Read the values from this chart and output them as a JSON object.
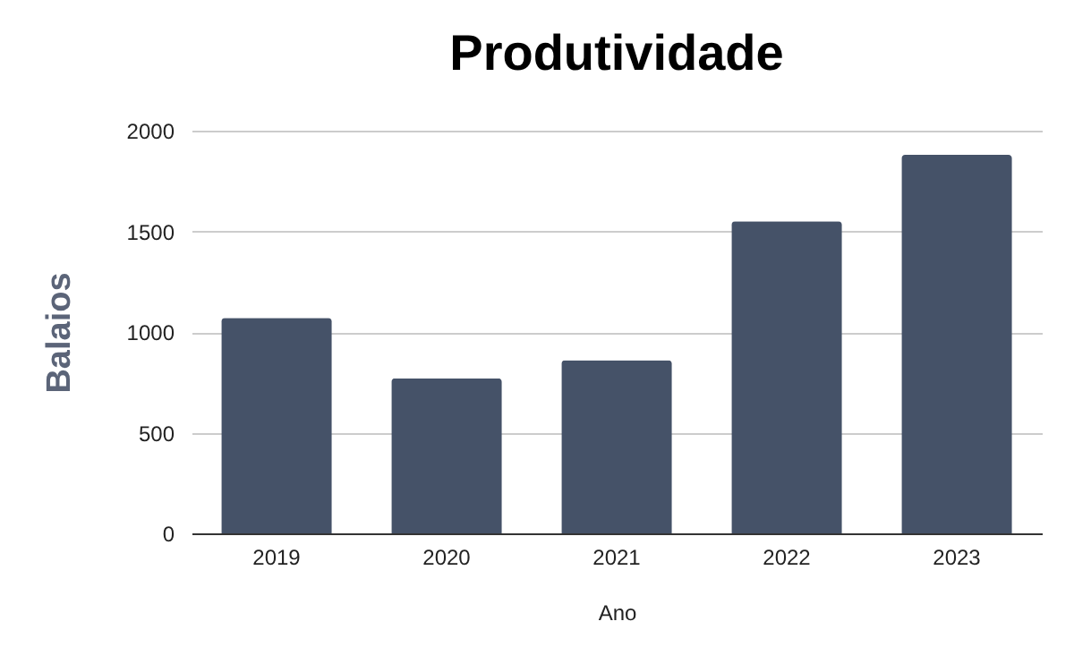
{
  "chart_data": {
    "type": "bar",
    "title": "Produtividade",
    "xlabel": "Ano",
    "ylabel": "Balaios",
    "categories": [
      "2019",
      "2020",
      "2021",
      "2022",
      "2023"
    ],
    "values": [
      1070,
      770,
      860,
      1550,
      1880
    ],
    "color": "#455268",
    "ylim": [
      0,
      2000
    ],
    "yticks": [
      0,
      500,
      1000,
      1500,
      2000
    ],
    "grid": "y"
  }
}
